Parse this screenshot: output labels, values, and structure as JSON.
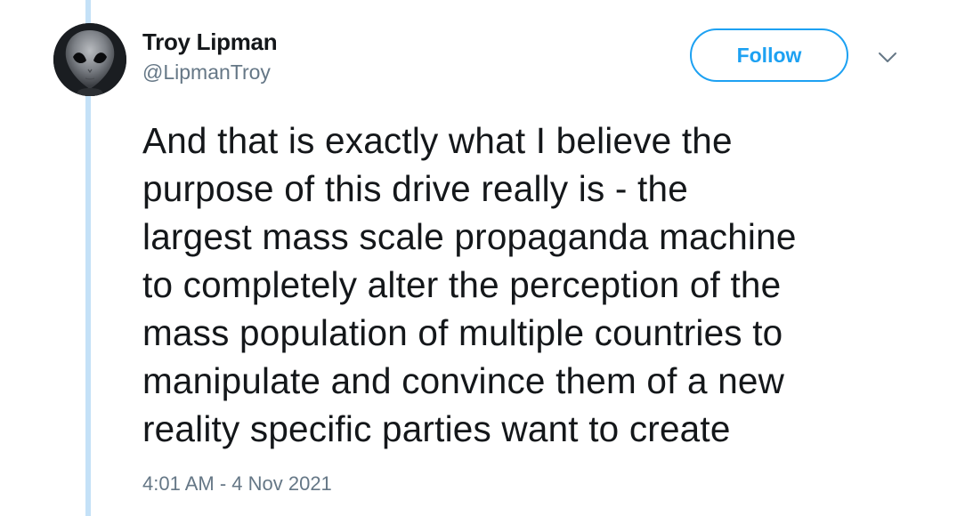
{
  "user": {
    "display_name": "Troy Lipman",
    "handle": "@LipmanTroy",
    "avatar_icon": "alien-avatar"
  },
  "actions": {
    "follow_label": "Follow",
    "more_icon": "chevron-down-icon"
  },
  "tweet": {
    "text": "And that is exactly what I believe the\npurpose of this drive really is - the\nlargest mass scale propaganda machine\nto completely alter the perception of the\nmass population of multiple countries to\nmanipulate and convince them of a new\nreality specific parties want to create",
    "timestamp": "4:01 AM - 4 Nov 2021"
  },
  "colors": {
    "accent": "#1da1f2",
    "thread_line": "#c4e1f7",
    "text_primary": "#14171a",
    "text_secondary": "#657786"
  }
}
